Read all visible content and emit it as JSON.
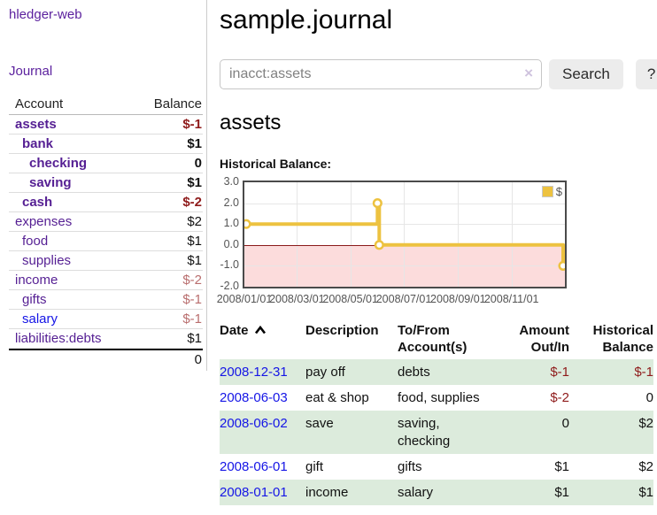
{
  "brand": "hledger-web",
  "sidebar": {
    "nav": {
      "journal": "Journal"
    },
    "accounts": {
      "header_account": "Account",
      "header_balance": "Balance",
      "rows": [
        {
          "name": "assets",
          "depth": 1,
          "bold": true,
          "balance": "$-1",
          "balance_style": "neg-strong"
        },
        {
          "name": "bank",
          "depth": 2,
          "bold": true,
          "balance": "$1",
          "balance_style": "pos"
        },
        {
          "name": "checking",
          "depth": 3,
          "bold": true,
          "balance": "0",
          "balance_style": "pos"
        },
        {
          "name": "saving",
          "depth": 3,
          "bold": true,
          "balance": "$1",
          "balance_style": "pos"
        },
        {
          "name": "cash",
          "depth": 2,
          "bold": true,
          "balance": "$-2",
          "balance_style": "neg-strong"
        },
        {
          "name": "expenses",
          "depth": 1,
          "bold": false,
          "balance": "$2",
          "balance_style": "pos"
        },
        {
          "name": "food",
          "depth": 2,
          "bold": false,
          "balance": "$1",
          "balance_style": "pos"
        },
        {
          "name": "supplies",
          "depth": 2,
          "bold": false,
          "balance": "$1",
          "balance_style": "pos"
        },
        {
          "name": "income",
          "depth": 1,
          "bold": false,
          "balance": "$-2",
          "balance_style": "neg-soft"
        },
        {
          "name": "gifts",
          "depth": 2,
          "bold": false,
          "balance": "$-1",
          "balance_style": "neg-soft"
        },
        {
          "name": "salary",
          "depth": 2,
          "bold": false,
          "balance": "$-1",
          "balance_style": "neg-soft",
          "link_state": "unvisited"
        },
        {
          "name": "liabilities:debts",
          "depth": 1,
          "bold": false,
          "balance": "$1",
          "balance_style": "pos"
        }
      ],
      "total": "0"
    }
  },
  "header": {
    "title": "sample.journal"
  },
  "search": {
    "value": "inacct:assets",
    "clear_label": "×",
    "search_button": "Search",
    "help_button": "?"
  },
  "account_view": {
    "title": "assets",
    "section_label": "Historical Balance:"
  },
  "chart_data": {
    "type": "line",
    "title": "Historical Balance",
    "series": [
      {
        "name": "$",
        "color": "#edc240",
        "step": true,
        "points": [
          {
            "x": "2008-01-01",
            "y": 1
          },
          {
            "x": "2008-06-01",
            "y": 2
          },
          {
            "x": "2008-06-03",
            "y": 0
          },
          {
            "x": "2008-12-31",
            "y": -1
          }
        ]
      }
    ],
    "xlim": [
      "2008-01-01",
      "2009-01-01"
    ],
    "ylim": [
      -2,
      3
    ],
    "yticks": [
      "3.0",
      "2.0",
      "1.0",
      "0.0",
      "-1.0",
      "-2.0"
    ],
    "xticks": [
      "2008/01/01",
      "2008/03/01",
      "2008/05/01",
      "2008/07/01",
      "2008/09/01",
      "2008/11/01"
    ],
    "legend_position": "top-right",
    "grid": true,
    "negative_region_color": "#fcdcdc",
    "zero_line_color": "#8b1a1a"
  },
  "register": {
    "columns": [
      {
        "label": "Date",
        "align": "left",
        "sorted": "asc"
      },
      {
        "label": "Description",
        "align": "left"
      },
      {
        "label": "To/From Account(s)",
        "align": "left"
      },
      {
        "label": "Amount Out/In",
        "align": "right"
      },
      {
        "label": "Historical Balance",
        "align": "right"
      }
    ],
    "rows": [
      {
        "date": "2008-12-31",
        "description": "pay off",
        "accounts": "debts",
        "amount": "$-1",
        "balance": "$-1",
        "shaded": true
      },
      {
        "date": "2008-06-03",
        "description": "eat & shop",
        "accounts": "food, supplies",
        "amount": "$-2",
        "balance": "0",
        "shaded": false
      },
      {
        "date": "2008-06-02",
        "description": "save",
        "accounts": "saving, checking",
        "amount": "0",
        "balance": "$2",
        "shaded": true
      },
      {
        "date": "2008-06-01",
        "description": "gift",
        "accounts": "gifts",
        "amount": "$1",
        "balance": "$2",
        "shaded": false
      },
      {
        "date": "2008-01-01",
        "description": "income",
        "accounts": "salary",
        "amount": "$1",
        "balance": "$1",
        "shaded": true
      }
    ]
  },
  "colors": {
    "link_purple": "#551f93",
    "link_blue": "#1515e6",
    "negative_strong": "#8f1b1b",
    "negative_soft": "#b96e6e",
    "series_gold": "#edc240",
    "row_shade_green": "#dcebdc",
    "negative_region_pink": "#fcdcdc",
    "zero_line_red": "#8b1a1a"
  }
}
